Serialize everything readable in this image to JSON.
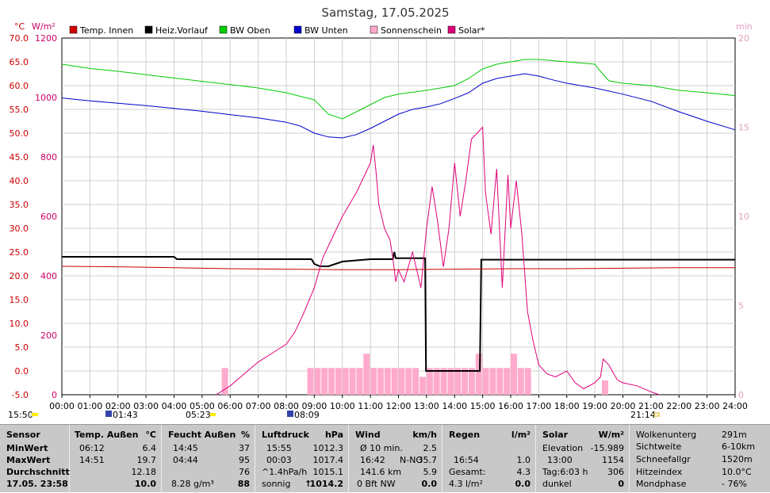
{
  "title": "Samstag, 17.05.2025",
  "legend": [
    {
      "label": "Temp. Innen",
      "color": "#d00000"
    },
    {
      "label": "Heiz.Vorlauf",
      "color": "#000000"
    },
    {
      "label": "BW Oben",
      "color": "#00cc00"
    },
    {
      "label": "BW Unten",
      "color": "#0000cc"
    },
    {
      "label": "Sonnenschein",
      "color": "#ffaacc"
    },
    {
      "label": "Solar*",
      "color": "#e0007a"
    }
  ],
  "axis_units": {
    "left1": "°C",
    "left2": "W/m²",
    "right": "min"
  },
  "sun_marks": {
    "sunrise_text": "05:23",
    "sunset_text": "21:14",
    "moon_rise_text": "01:43",
    "moon_set_text": "08:09",
    "left_text": "15:50"
  },
  "chart_data": {
    "type": "line",
    "title": "Samstag, 17.05.2025",
    "x_ticks": [
      "00:00",
      "01:00",
      "02:00",
      "03:00",
      "04:00",
      "05:00",
      "06:00",
      "07:00",
      "08:00",
      "09:00",
      "10:00",
      "11:00",
      "12:00",
      "13:00",
      "14:00",
      "15:00",
      "16:00",
      "17:00",
      "18:00",
      "19:00",
      "20:00",
      "21:00",
      "22:00",
      "23:00",
      "24:00"
    ],
    "y_left_ticks": [
      "70.0",
      "65.0",
      "60.0",
      "55.0",
      "50.0",
      "45.0",
      "40.0",
      "35.0",
      "30.0",
      "25.0",
      "20.0",
      "15.0",
      "10.0",
      "5.0",
      "0.0",
      "-5.0"
    ],
    "y_left_range": [
      -5,
      70
    ],
    "y_solar_ticks": [
      "1200",
      "1000",
      "800",
      "600",
      "400",
      "200",
      "0"
    ],
    "y_solar_range": [
      0,
      1200
    ],
    "y_right_ticks": [
      "20",
      "15",
      "10",
      "5",
      "0"
    ],
    "y_right_range": [
      0,
      20
    ],
    "grid": true,
    "series": [
      {
        "name": "BW Oben",
        "color": "#00cc00",
        "axis": "celsius",
        "x": [
          0,
          1,
          2,
          3,
          4,
          5,
          6,
          7,
          8,
          9,
          9.5,
          10,
          10.5,
          11,
          11.5,
          12,
          13,
          14,
          14.5,
          15,
          15.5,
          16,
          16.5,
          17,
          18,
          19,
          19.2,
          19.5,
          20,
          21,
          22,
          23,
          24
        ],
        "y": [
          64.5,
          63.6,
          63,
          62.3,
          61.6,
          60.9,
          60.2,
          59.5,
          58.5,
          57,
          54,
          53,
          54.5,
          56,
          57.5,
          58.2,
          59,
          60,
          61.5,
          63.5,
          64.5,
          65,
          65.5,
          65.5,
          65,
          64.5,
          63,
          61,
          60.5,
          60,
          59,
          58.5,
          57.9
        ]
      },
      {
        "name": "BW Unten",
        "color": "#0000cc",
        "axis": "celsius",
        "x": [
          0,
          1,
          2,
          3,
          4,
          5,
          6,
          7,
          8,
          8.5,
          9,
          9.5,
          10,
          10.5,
          11,
          11.5,
          12,
          12.5,
          13,
          13.5,
          14,
          14.5,
          15,
          15.5,
          16,
          16.5,
          17,
          17.5,
          18,
          19,
          20,
          21,
          22,
          23,
          24
        ],
        "y": [
          57.4,
          56.8,
          56.3,
          55.8,
          55.2,
          54.6,
          53.9,
          53.2,
          52.3,
          51.5,
          50,
          49.2,
          49,
          49.7,
          51,
          52.5,
          54,
          55,
          55.5,
          56.2,
          57.3,
          58.5,
          60.5,
          61.5,
          62,
          62.5,
          62,
          61.2,
          60.5,
          59.5,
          58.2,
          56.7,
          54.5,
          52.5,
          50.7
        ]
      },
      {
        "name": "Heiz.Vorlauf",
        "color": "#000000",
        "axis": "celsius",
        "x": [
          0,
          4,
          4.1,
          8.9,
          9,
          9.2,
          9.5,
          10,
          11,
          11.8,
          11.85,
          11.9,
          12,
          12.95,
          12.98,
          14.9,
          14.95,
          15,
          24
        ],
        "y": [
          24,
          24,
          23.5,
          23.5,
          22.5,
          22,
          22,
          23,
          23.5,
          23.5,
          25,
          23.7,
          23.7,
          23.7,
          0,
          0,
          23.4,
          23.4,
          23.4
        ]
      },
      {
        "name": "Temp. Innen",
        "color": "#cc0000",
        "axis": "celsius",
        "x": [
          0,
          2,
          4,
          6,
          8,
          10,
          12,
          14,
          16,
          18,
          20,
          22,
          24
        ],
        "y": [
          22,
          21.9,
          21.7,
          21.5,
          21.4,
          21.3,
          21.3,
          21.4,
          21.5,
          21.5,
          21.6,
          21.7,
          21.7
        ]
      },
      {
        "name": "Solar*",
        "color": "#e0007a",
        "axis": "solar",
        "x": [
          5.5,
          6,
          6.5,
          7,
          7.5,
          8,
          8.3,
          8.6,
          9,
          9.3,
          9.6,
          10,
          10.5,
          10.9,
          11,
          11.1,
          11.2,
          11.3,
          11.5,
          11.7,
          11.8,
          11.9,
          12,
          12.2,
          12.5,
          12.8,
          13,
          13.2,
          13.4,
          13.6,
          13.8,
          14,
          14.2,
          14.4,
          14.6,
          14.8,
          15,
          15.1,
          15.3,
          15.5,
          15.7,
          15.9,
          16,
          16.2,
          16.4,
          16.6,
          16.8,
          17,
          17.3,
          17.6,
          18,
          18.3,
          18.6,
          19,
          19.2,
          19.3,
          19.5,
          19.8,
          20,
          20.5,
          21,
          21.3
        ],
        "y": [
          0,
          30,
          70,
          110,
          140,
          170,
          210,
          270,
          360,
          460,
          520,
          600,
          680,
          760,
          780,
          840,
          750,
          640,
          560,
          520,
          460,
          380,
          420,
          380,
          480,
          360,
          560,
          700,
          580,
          430,
          560,
          780,
          600,
          720,
          860,
          880,
          900,
          680,
          540,
          760,
          360,
          740,
          560,
          720,
          540,
          280,
          180,
          100,
          70,
          60,
          80,
          40,
          20,
          40,
          60,
          120,
          100,
          50,
          40,
          30,
          10,
          0
        ]
      }
    ],
    "sunshine_bars": {
      "name": "Sonnenschein",
      "color": "#ffaacc",
      "x": [
        5.7,
        8.75,
        9,
        9.25,
        9.5,
        9.75,
        10,
        10.25,
        10.5,
        10.75,
        11,
        11.25,
        11.5,
        11.75,
        12,
        12.25,
        12.5,
        12.75,
        13,
        13.25,
        13.5,
        13.75,
        14,
        14.25,
        14.5,
        14.75,
        15,
        15.25,
        15.5,
        15.75,
        16,
        16.25,
        16.5,
        19.25
      ],
      "y": [
        1.5,
        1.5,
        1.5,
        1.5,
        1.5,
        1.5,
        1.5,
        1.5,
        1.5,
        2.3,
        1.5,
        1.5,
        1.5,
        1.5,
        1.5,
        1.5,
        1.5,
        1.0,
        1.5,
        1.5,
        1.5,
        1.5,
        1.5,
        1.5,
        1.5,
        2.3,
        1.5,
        1.5,
        1.5,
        1.5,
        2.3,
        1.5,
        1.5,
        0.8
      ]
    }
  },
  "stats": {
    "sensor": {
      "header": "Sensor",
      "rows": [
        "MinWert",
        "MaxWert",
        "Durchschnitt",
        "17.05. 23:58"
      ]
    },
    "temp": {
      "header": "Temp. Außen",
      "unit": "°C",
      "rows": [
        [
          "06:12",
          "6.4"
        ],
        [
          "14:51",
          "19.7"
        ],
        [
          "",
          "12.18"
        ],
        [
          "",
          "10.0"
        ]
      ]
    },
    "feucht": {
      "header": "Feucht Außen",
      "unit": "%",
      "rows": [
        [
          "14:45",
          "37"
        ],
        [
          "04:44",
          "95"
        ],
        [
          "",
          "76"
        ],
        [
          "8.28 g/m³",
          "88"
        ]
      ]
    },
    "luft": {
      "header": "Luftdruck",
      "unit": "hPa",
      "rows": [
        [
          "15:55",
          "1012.3"
        ],
        [
          "00:03",
          "1017.4"
        ],
        [
          "^1.4hPa/h",
          "1015.1"
        ],
        [
          "sonnig",
          "1014.2"
        ]
      ]
    },
    "wind": {
      "header": "Wind",
      "unit": "km/h",
      "rows": [
        [
          "Ø 10 min.",
          "",
          "2.5"
        ],
        [
          "16:42",
          "N-NO",
          "35.7"
        ],
        [
          "141.6 km",
          "",
          "5.9"
        ],
        [
          "0 Bft NW",
          "",
          "0.0"
        ]
      ]
    },
    "regen": {
      "header": "Regen",
      "unit": "l/m²",
      "rows": [
        [
          "",
          ""
        ],
        [
          "16:54",
          "1.0"
        ],
        [
          "Gesamt:",
          "4.3"
        ],
        [
          "4.3 l/m²",
          "0.0"
        ]
      ]
    },
    "solar": {
      "header": "Solar",
      "unit": "W/m²",
      "rows": [
        [
          "Elevation",
          "-15.989"
        ],
        [
          "13:00",
          "1154"
        ],
        [
          "Tag:6:03 h",
          "306"
        ],
        [
          "dunkel",
          "0"
        ]
      ]
    },
    "misc": {
      "rows": [
        [
          "Wolkenunterg",
          "291m"
        ],
        [
          "Sichtweite",
          "6-10km"
        ],
        [
          "Schneefallgr",
          "1520m"
        ],
        [
          "Hitzeindex",
          "10.0°C"
        ],
        [
          "Mondphase",
          "- 76%"
        ]
      ]
    }
  }
}
